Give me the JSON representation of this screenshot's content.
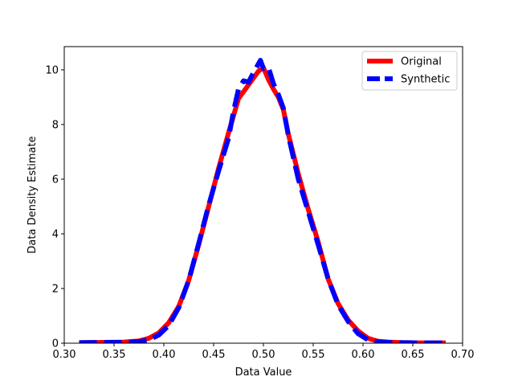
{
  "chart_data": {
    "type": "line",
    "title": "",
    "xlabel": "Data Value",
    "ylabel": "Data Density Estimate",
    "xlim": [
      0.3,
      0.7
    ],
    "ylim": [
      0,
      10.85
    ],
    "xticks": [
      "0.30",
      "0.35",
      "0.40",
      "0.45",
      "0.50",
      "0.55",
      "0.60",
      "0.65",
      "0.70"
    ],
    "yticks": [
      "0",
      "2",
      "4",
      "6",
      "8",
      "10"
    ],
    "grid": false,
    "legend_position": "top-right",
    "series": [
      {
        "name": "Original",
        "color": "#ff0000",
        "style": "solid",
        "x": [
          0.315,
          0.34,
          0.36,
          0.375,
          0.385,
          0.395,
          0.405,
          0.415,
          0.425,
          0.435,
          0.445,
          0.455,
          0.465,
          0.475,
          0.48,
          0.485,
          0.49,
          0.495,
          0.5,
          0.505,
          0.51,
          0.515,
          0.52,
          0.525,
          0.535,
          0.545,
          0.555,
          0.565,
          0.575,
          0.585,
          0.595,
          0.605,
          0.615,
          0.625,
          0.64,
          0.66,
          0.683
        ],
        "y": [
          0.02,
          0.03,
          0.04,
          0.08,
          0.18,
          0.38,
          0.75,
          1.35,
          2.3,
          3.6,
          5.0,
          6.4,
          7.7,
          8.95,
          9.2,
          9.45,
          9.7,
          9.95,
          10.08,
          9.65,
          9.3,
          9.0,
          8.55,
          7.65,
          6.2,
          4.9,
          3.7,
          2.35,
          1.45,
          0.85,
          0.45,
          0.18,
          0.07,
          0.04,
          0.02,
          0.01,
          0.01
        ]
      },
      {
        "name": "Synthetic",
        "color": "#0000ff",
        "style": "dashed",
        "x": [
          0.315,
          0.34,
          0.36,
          0.375,
          0.385,
          0.395,
          0.405,
          0.415,
          0.425,
          0.435,
          0.445,
          0.455,
          0.465,
          0.47,
          0.475,
          0.48,
          0.485,
          0.49,
          0.497,
          0.5,
          0.505,
          0.51,
          0.515,
          0.52,
          0.525,
          0.535,
          0.545,
          0.555,
          0.565,
          0.575,
          0.585,
          0.595,
          0.605,
          0.615,
          0.625,
          0.64,
          0.66,
          0.683
        ],
        "y": [
          0.02,
          0.03,
          0.03,
          0.06,
          0.12,
          0.3,
          0.65,
          1.3,
          2.3,
          3.65,
          5.05,
          6.3,
          7.5,
          8.5,
          9.3,
          9.6,
          9.55,
          9.9,
          10.35,
          10.05,
          10.1,
          9.5,
          9.1,
          8.6,
          7.6,
          6.0,
          4.8,
          3.6,
          2.35,
          1.4,
          0.8,
          0.35,
          0.12,
          0.05,
          0.03,
          0.02,
          0.01,
          0.01
        ]
      }
    ]
  }
}
